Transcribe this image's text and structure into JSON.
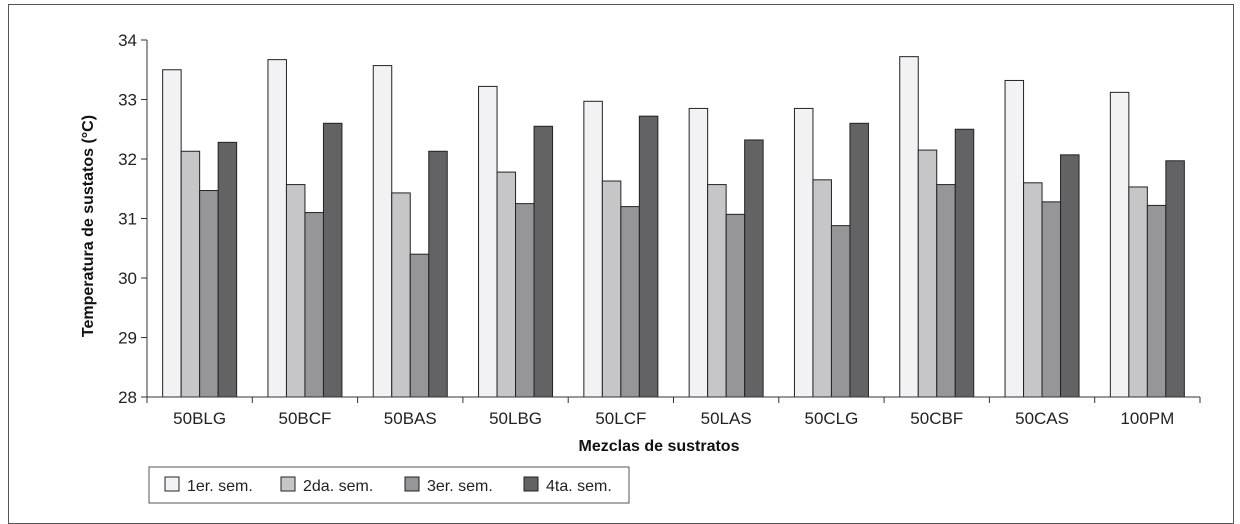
{
  "chart_data": {
    "type": "bar",
    "xlabel": "Mezclas de sustratos",
    "ylabel": "Temperatura de sustatos (°C)",
    "ylim": [
      28,
      34
    ],
    "yticks": [
      28,
      29,
      30,
      31,
      32,
      33,
      34
    ],
    "grid": false,
    "legend_position": "bottom-left",
    "categories": [
      "50BLG",
      "50BCF",
      "50BAS",
      "50LBG",
      "50LCF",
      "50LAS",
      "50CLG",
      "50CBF",
      "50CAS",
      "100PM"
    ],
    "series": [
      {
        "name": "1er. sem.",
        "color": "#f2f2f4",
        "values": [
          33.5,
          33.67,
          33.57,
          33.22,
          32.97,
          32.85,
          32.85,
          33.72,
          33.32,
          33.12
        ]
      },
      {
        "name": "2da. sem.",
        "color": "#c6c6c8",
        "values": [
          32.13,
          31.57,
          31.43,
          31.78,
          31.63,
          31.57,
          31.65,
          32.15,
          31.6,
          31.53
        ]
      },
      {
        "name": "3er. sem.",
        "color": "#969698",
        "values": [
          31.47,
          31.1,
          30.4,
          31.25,
          31.2,
          31.07,
          30.88,
          31.57,
          31.28,
          31.22
        ]
      },
      {
        "name": "4ta. sem.",
        "color": "#636366",
        "values": [
          32.28,
          32.6,
          32.13,
          32.55,
          32.72,
          32.32,
          32.6,
          32.5,
          32.07,
          31.97
        ]
      }
    ]
  }
}
